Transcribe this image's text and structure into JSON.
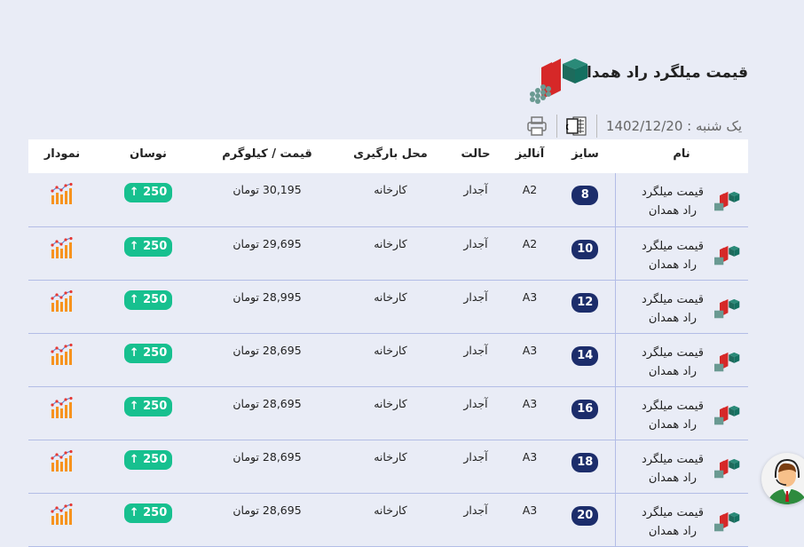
{
  "page": {
    "title": "قیمت میلگرد راد همدان",
    "date_label": "یک شنبه : 1402/12/20"
  },
  "toolbar": {
    "excel_icon": "excel-icon",
    "print_icon": "print-icon"
  },
  "table": {
    "headers": [
      "نام",
      "سایز",
      "آنالیز",
      "حالت",
      "محل بارگیری",
      "قیمت / کیلوگرم",
      "نوسان",
      "نمودار"
    ],
    "rows": [
      {
        "name": "قیمت میلگرد راد همدان",
        "size": "8",
        "analysis": "A2",
        "state": "آجدار",
        "location": "کارخانه",
        "price": "30,195 تومان",
        "change": "250 ↑"
      },
      {
        "name": "قیمت میلگرد راد همدان",
        "size": "10",
        "analysis": "A2",
        "state": "آجدار",
        "location": "کارخانه",
        "price": "29,695 تومان",
        "change": "250 ↑"
      },
      {
        "name": "قیمت میلگرد راد همدان",
        "size": "12",
        "analysis": "A3",
        "state": "آجدار",
        "location": "کارخانه",
        "price": "28,995 تومان",
        "change": "250 ↑"
      },
      {
        "name": "قیمت میلگرد راد همدان",
        "size": "14",
        "analysis": "A3",
        "state": "آجدار",
        "location": "کارخانه",
        "price": "28,695 تومان",
        "change": "250 ↑"
      },
      {
        "name": "قیمت میلگرد راد همدان",
        "size": "16",
        "analysis": "A3",
        "state": "آجدار",
        "location": "کارخانه",
        "price": "28,695 تومان",
        "change": "250 ↑"
      },
      {
        "name": "قیمت میلگرد راد همدان",
        "size": "18",
        "analysis": "A3",
        "state": "آجدار",
        "location": "کارخانه",
        "price": "28,695 تومان",
        "change": "250 ↑"
      },
      {
        "name": "قیمت میلگرد راد همدان",
        "size": "20",
        "analysis": "A3",
        "state": "آجدار",
        "location": "کارخانه",
        "price": "28,695 تومان",
        "change": "250 ↑"
      }
    ]
  },
  "colors": {
    "size_badge": "#1c2d6b",
    "change_up": "#17c08f",
    "chart_icon": "#f7931e"
  }
}
